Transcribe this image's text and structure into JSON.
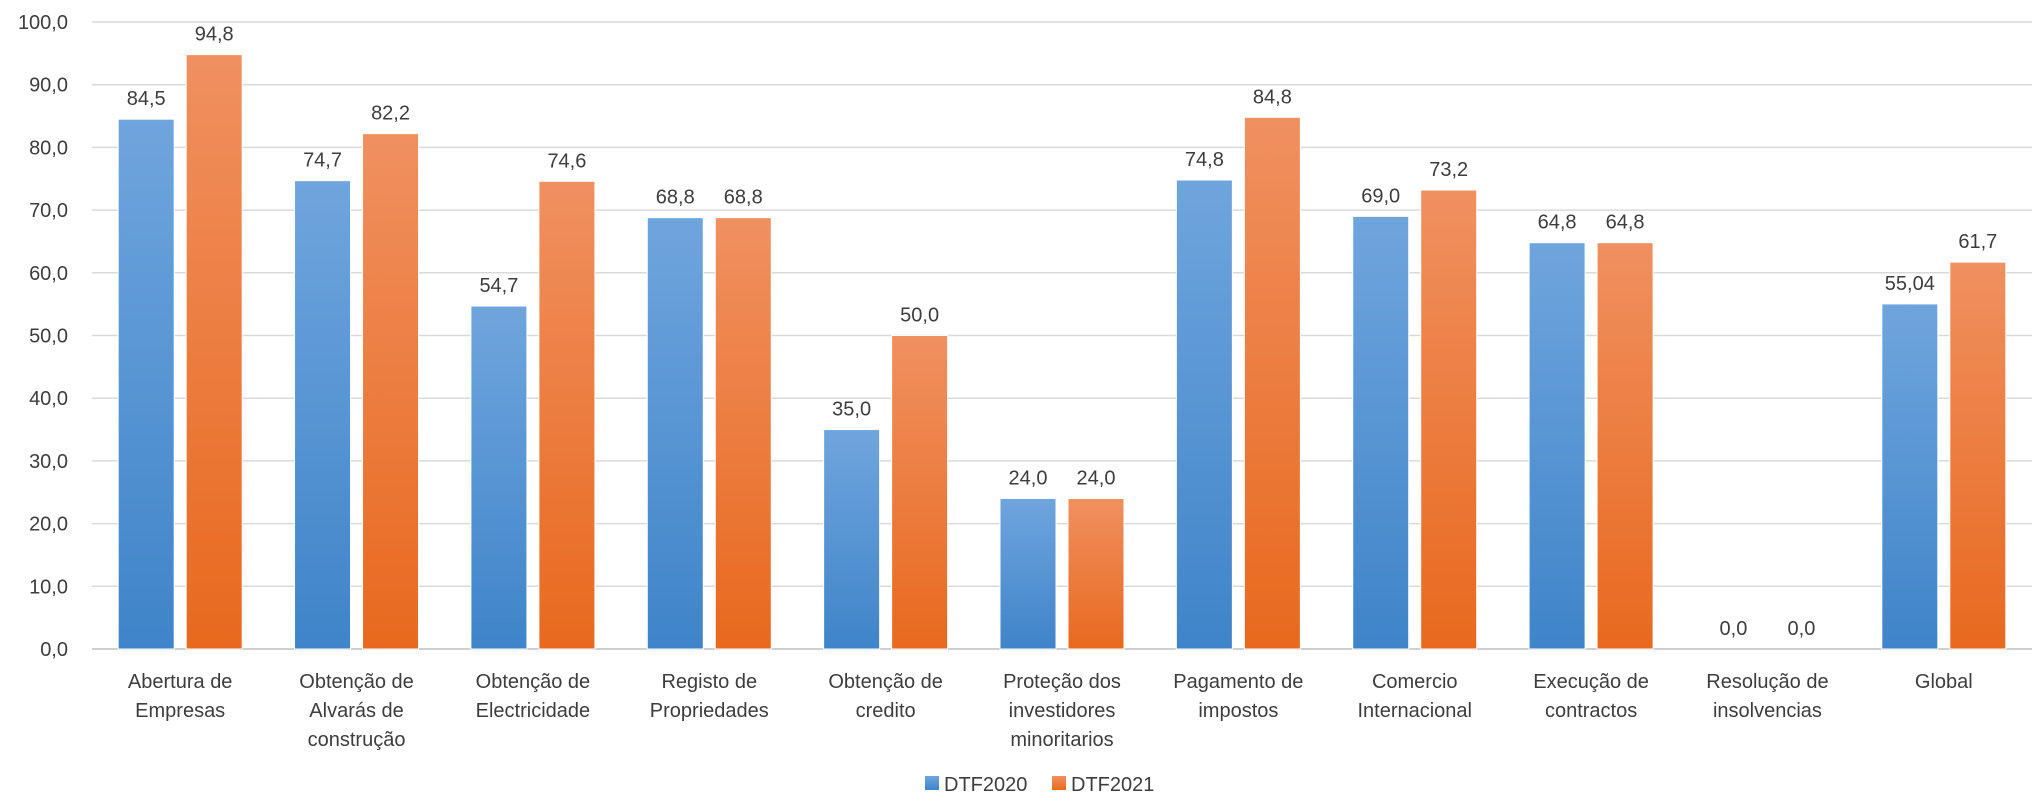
{
  "chart_data": {
    "type": "bar",
    "categories": [
      [
        "Abertura de",
        "Empresas"
      ],
      [
        "Obtenção de",
        "Alvarás de",
        "construção"
      ],
      [
        "Obtenção de",
        "Electricidade"
      ],
      [
        "Registo de",
        "Propriedades"
      ],
      [
        "Obtenção de",
        "credito"
      ],
      [
        "Proteção dos",
        "investidores",
        "minoritarios"
      ],
      [
        "Pagamento de",
        "impostos"
      ],
      [
        "Comercio",
        "Internacional"
      ],
      [
        "Execução de",
        "contractos"
      ],
      [
        "Resolução de",
        "insolvencias"
      ],
      [
        "Global"
      ]
    ],
    "series": [
      {
        "name": "DTF2020",
        "values": [
          84.5,
          74.7,
          54.7,
          68.8,
          35.0,
          24.0,
          74.8,
          69.0,
          64.8,
          0.0,
          55.04
        ],
        "labels": [
          "84,5",
          "74,7",
          "54,7",
          "68,8",
          "35,0",
          "24,0",
          "74,8",
          "69,0",
          "64,8",
          "0,0",
          "55,04"
        ],
        "color_top": "#6fa5dd",
        "color_bottom": "#3f84c9"
      },
      {
        "name": "DTF2021",
        "values": [
          94.8,
          82.2,
          74.6,
          68.8,
          50.0,
          24.0,
          84.8,
          73.2,
          64.8,
          0.0,
          61.7
        ],
        "labels": [
          "94,8",
          "82,2",
          "74,6",
          "68,8",
          "50,0",
          "24,0",
          "84,8",
          "73,2",
          "64,8",
          "0,0",
          "61,7"
        ],
        "color_top": "#f09060",
        "color_bottom": "#e8691e"
      }
    ],
    "ylim": [
      0,
      100
    ],
    "yticks": [
      "0,0",
      "10,0",
      "20,0",
      "30,0",
      "40,0",
      "50,0",
      "60,0",
      "70,0",
      "80,0",
      "90,0",
      "100,0"
    ],
    "grid": true,
    "legend": "bottom-center",
    "title": "",
    "xlabel": "",
    "ylabel": ""
  }
}
